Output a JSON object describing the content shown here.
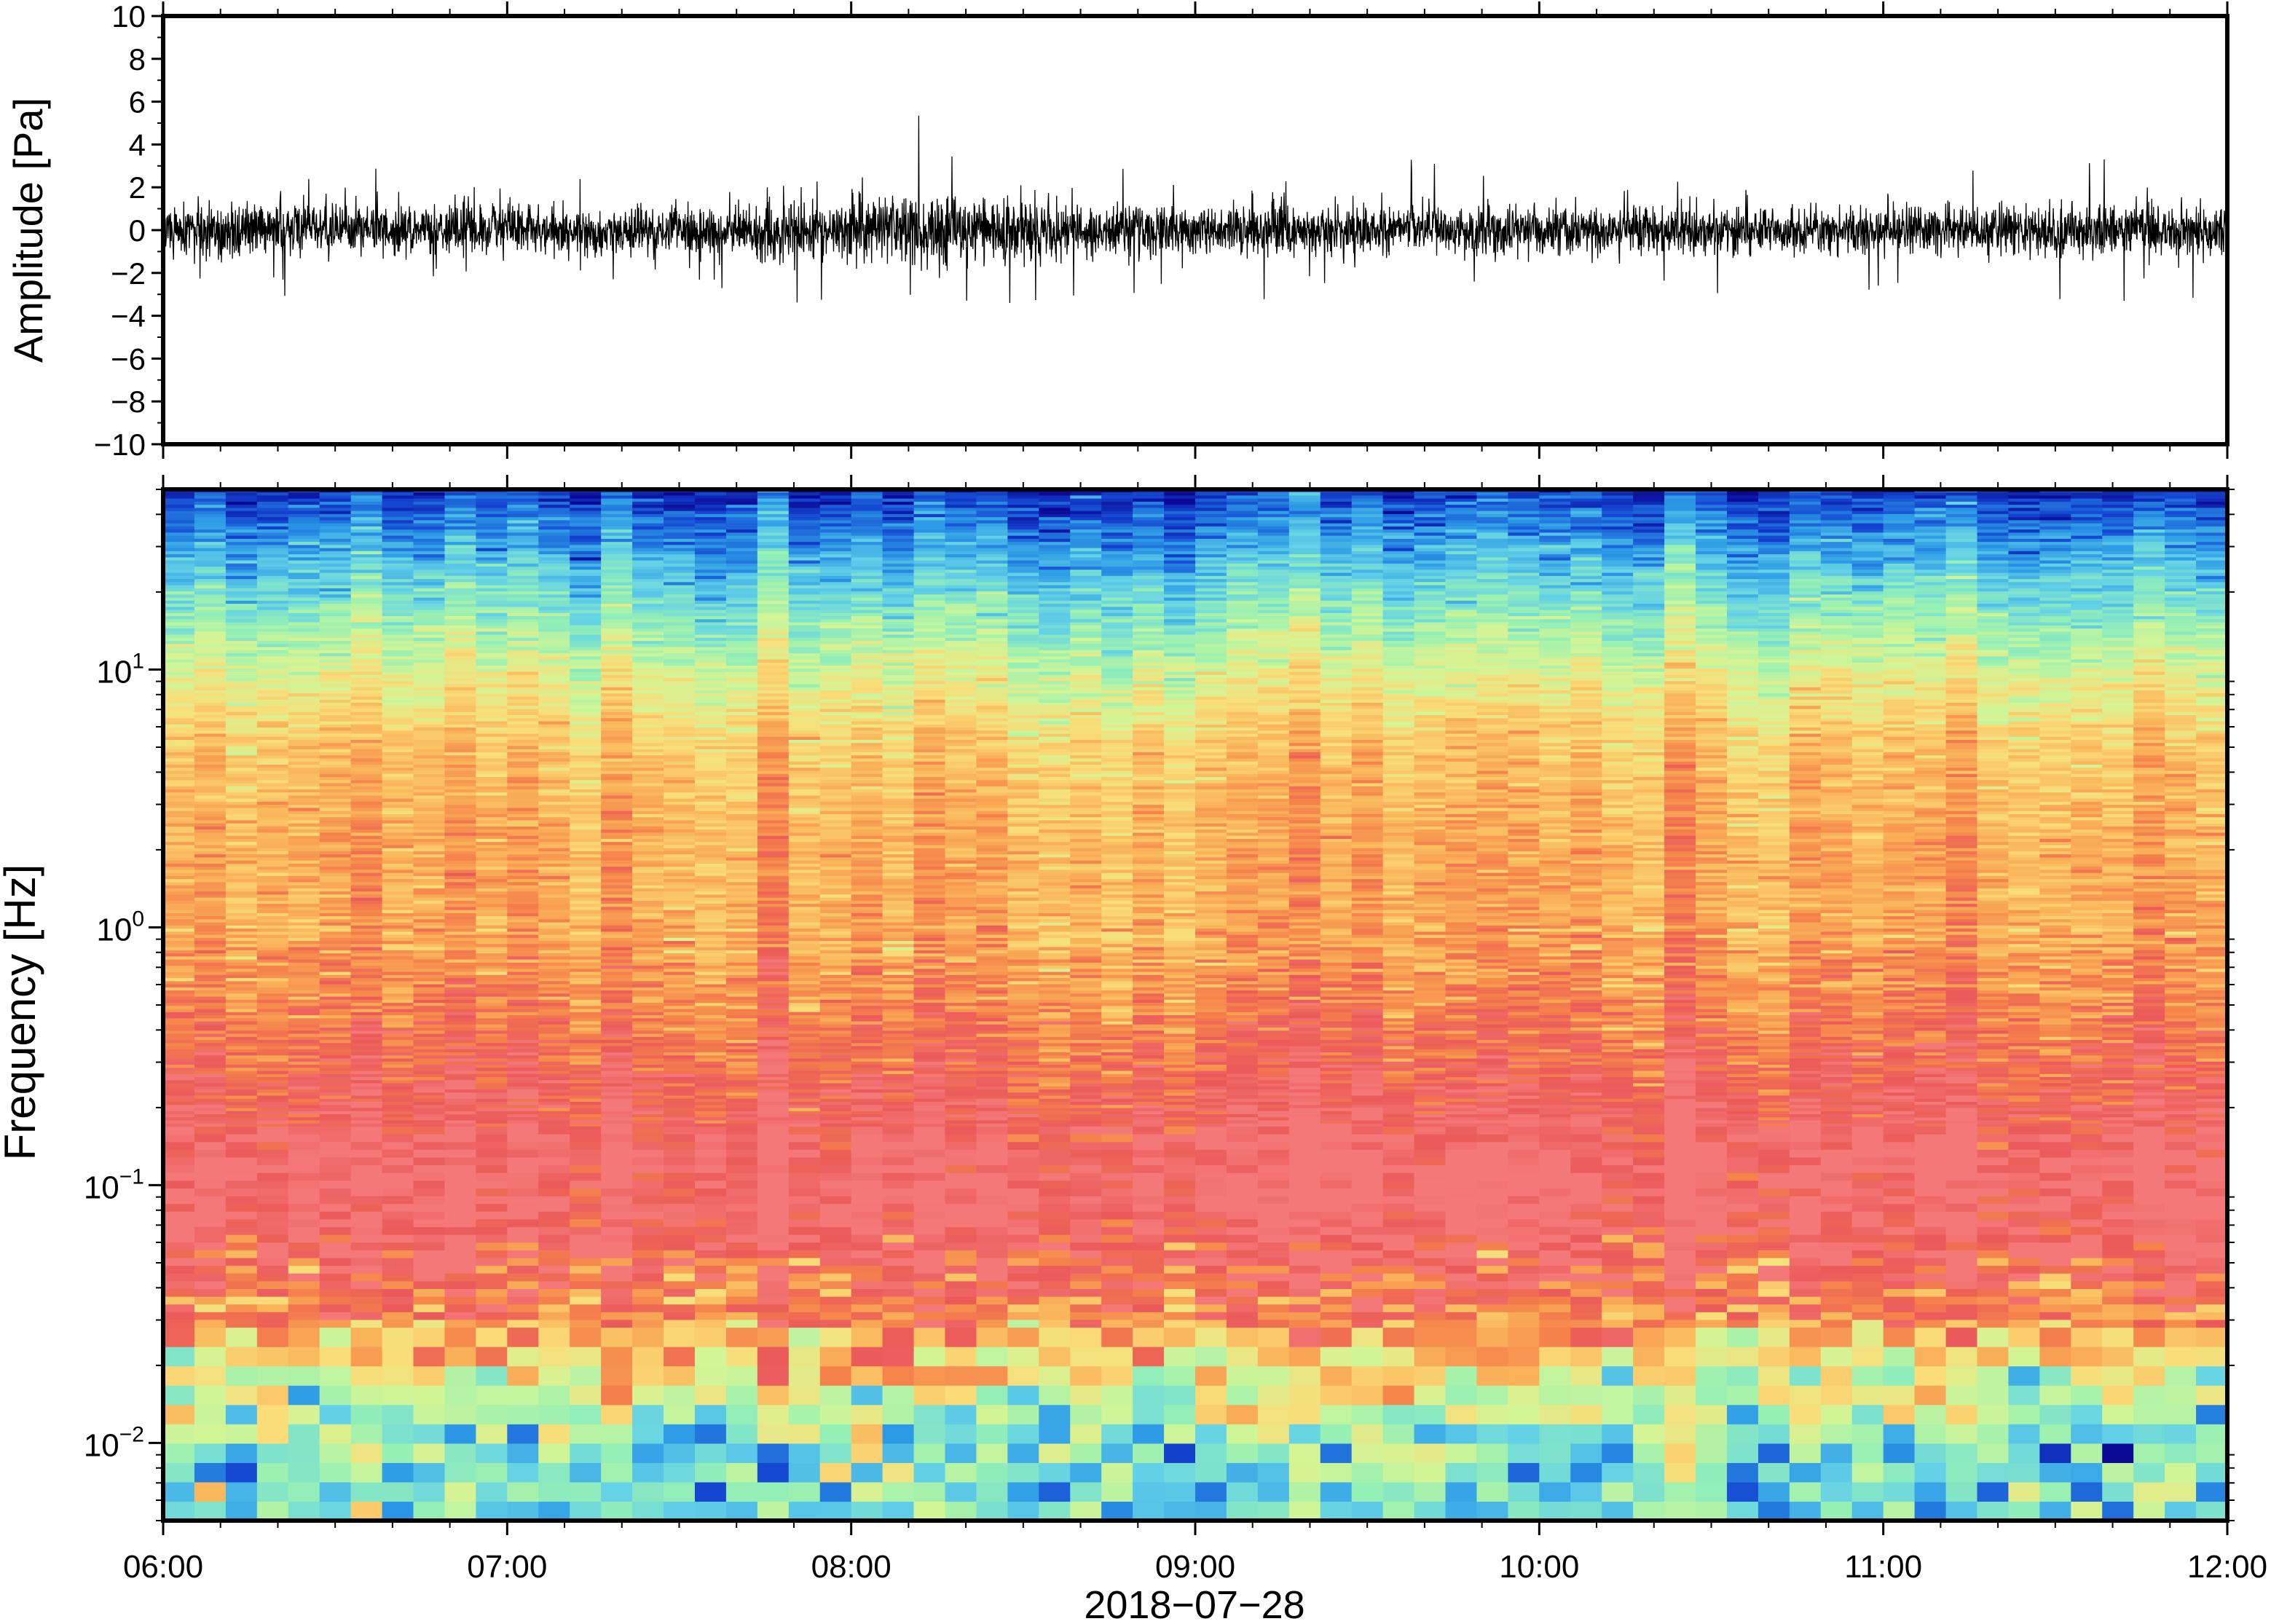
{
  "chart_data": [
    {
      "type": "line",
      "panel": "waveform",
      "ylabel": "Amplitude [Pa]",
      "ylim": [
        -10,
        10
      ],
      "yticks": [
        10,
        8,
        6,
        4,
        2,
        0,
        -2,
        -4,
        -6,
        -8,
        -10
      ],
      "ytick_labels": [
        "10",
        "8",
        "6",
        "4",
        "2",
        "0",
        "−2",
        "−4",
        "−6",
        "−8",
        "−10"
      ],
      "x_start": "2018-07-28T06:00",
      "x_end": "2018-07-28T12:00",
      "series_color": "#000000",
      "noise_envelope": {
        "x": [
          "06:00",
          "06:30",
          "07:00",
          "07:30",
          "08:00",
          "08:15",
          "08:30",
          "09:00",
          "09:30",
          "10:00",
          "10:30",
          "11:00",
          "11:30",
          "12:00"
        ],
        "typical_amplitude": [
          1.2,
          1.1,
          1.0,
          1.0,
          1.3,
          1.6,
          1.3,
          1.1,
          1.1,
          1.0,
          1.0,
          1.0,
          1.1,
          1.2
        ],
        "peak_amplitude": [
          3.5,
          3.0,
          2.5,
          2.5,
          3.8,
          6.0,
          3.5,
          3.5,
          3.8,
          3.0,
          3.0,
          3.0,
          3.8,
          3.2
        ]
      }
    },
    {
      "type": "heatmap",
      "panel": "spectrogram",
      "ylabel": "Frequency [Hz]",
      "yscale": "log",
      "ylim": [
        0.005,
        50
      ],
      "yticks": [
        0.01,
        0.1,
        1,
        10
      ],
      "ytick_labels": [
        {
          "base": "10",
          "exp": "−2"
        },
        {
          "base": "10",
          "exp": "−1"
        },
        {
          "base": "10",
          "exp": "0"
        },
        {
          "base": "10",
          "exp": "1"
        }
      ],
      "xlabel": "2018−07−28",
      "x_start": "2018-07-28T06:00",
      "x_end": "2018-07-28T12:00",
      "xtick_labels": [
        "06:00",
        "07:00",
        "08:00",
        "09:00",
        "10:00",
        "11:00",
        "12:00"
      ],
      "colormap": [
        "#0a0a96",
        "#1446d2",
        "#2d9be6",
        "#64d2e6",
        "#96f0b4",
        "#d2f596",
        "#fadc78",
        "#fab45a",
        "#f5824b",
        "#eb5a5a",
        "#f57878"
      ],
      "frequency_profile": {
        "frequency_hz": [
          0.005,
          0.01,
          0.02,
          0.03,
          0.05,
          0.1,
          0.2,
          0.5,
          1,
          2,
          5,
          10,
          20,
          50
        ],
        "relative_power": [
          0.32,
          0.38,
          0.58,
          0.78,
          0.94,
          1.0,
          0.93,
          0.8,
          0.72,
          0.72,
          0.66,
          0.52,
          0.34,
          0.08
        ]
      }
    }
  ]
}
